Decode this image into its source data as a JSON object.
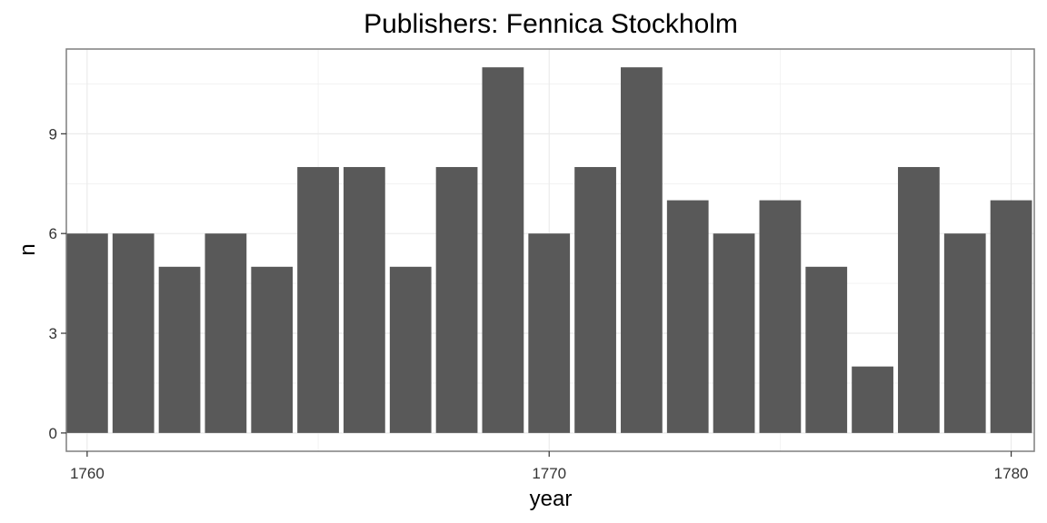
{
  "chart_data": {
    "type": "bar",
    "title": "Publishers: Fennica Stockholm",
    "xlabel": "year",
    "ylabel": "n",
    "x": [
      1760,
      1761,
      1762,
      1763,
      1764,
      1765,
      1766,
      1767,
      1768,
      1769,
      1770,
      1771,
      1772,
      1773,
      1774,
      1775,
      1776,
      1777,
      1778,
      1779,
      1780
    ],
    "values": [
      6,
      6,
      5,
      6,
      5,
      8,
      8,
      5,
      8,
      11,
      6,
      8,
      11,
      7,
      6,
      7,
      5,
      2,
      8,
      6,
      7
    ],
    "xticks": [
      1760,
      1770,
      1780
    ],
    "yticks": [
      0,
      3,
      6,
      9
    ],
    "xlim": [
      1759.55,
      1780.5
    ],
    "ylim": [
      -0.55,
      11.55
    ],
    "grid": true,
    "bar_color": "#595959",
    "panel_border_color": "#7f7f7f",
    "grid_color": "#ebebeb"
  }
}
